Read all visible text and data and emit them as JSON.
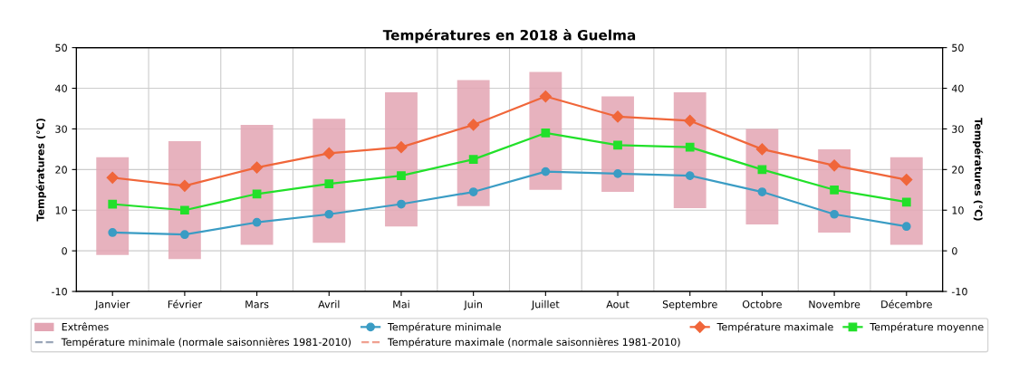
{
  "chart_data": {
    "type": "bar",
    "title": "Températures en 2018 à Guelma",
    "ylabel": "Températures (°C)",
    "y2label": "Températures (°C)",
    "categories": [
      "Janvier",
      "Février",
      "Mars",
      "Avril",
      "Mai",
      "Juin",
      "Juillet",
      "Aout",
      "Septembre",
      "Octobre",
      "Novembre",
      "Décembre"
    ],
    "series": [
      {
        "name": "Extrêmes",
        "color": "#e3a5b3",
        "base": [
          -1,
          -2,
          1.5,
          2,
          6,
          11,
          15,
          14.5,
          10.5,
          6.5,
          4.5,
          1.5
        ],
        "values": [
          24,
          29,
          29.5,
          30.5,
          33,
          31,
          29,
          23.5,
          28.5,
          23.5,
          20.5,
          21.5
        ]
      },
      {
        "name": "Température minimale",
        "type": "line",
        "color": "#3a9cc4",
        "marker": "circle",
        "values": [
          4.5,
          4,
          7,
          9,
          11.5,
          14.5,
          19.5,
          19,
          18.5,
          14.5,
          9,
          6
        ]
      },
      {
        "name": "Température maximale",
        "type": "line",
        "color": "#f0663a",
        "marker": "diamond",
        "values": [
          18,
          16,
          20.5,
          24,
          25.5,
          31,
          38,
          33,
          32,
          25,
          21,
          17.5
        ]
      },
      {
        "name": "Température moyenne",
        "type": "line",
        "color": "#22e02a",
        "marker": "square",
        "values": [
          11.5,
          10,
          14,
          16.5,
          18.5,
          22.5,
          29,
          26,
          25.5,
          20,
          15,
          12
        ]
      },
      {
        "name": "Température minimale (normale saisonnières 1981-2010)",
        "type": "line",
        "color": "#9aa6b8",
        "line_style": "dashed",
        "marker": "none",
        "values": [
          null,
          null,
          null,
          null,
          null,
          null,
          null,
          null,
          null,
          null,
          null,
          null
        ]
      },
      {
        "name": "Température maximale (normale saisonnières 1981-2010)",
        "type": "line",
        "color": "#f0a090",
        "line_style": "dashed",
        "marker": "none",
        "values": [
          null,
          null,
          null,
          null,
          null,
          null,
          null,
          null,
          null,
          null,
          null,
          null
        ]
      }
    ],
    "ylim": [
      -10,
      50
    ],
    "yticks": [
      -10,
      0,
      10,
      20,
      30,
      40,
      50
    ],
    "y2lim": [
      -10,
      50
    ],
    "y2ticks": [
      -10,
      0,
      10,
      20,
      30,
      40,
      50
    ],
    "grid": true,
    "legend": "bottom"
  }
}
